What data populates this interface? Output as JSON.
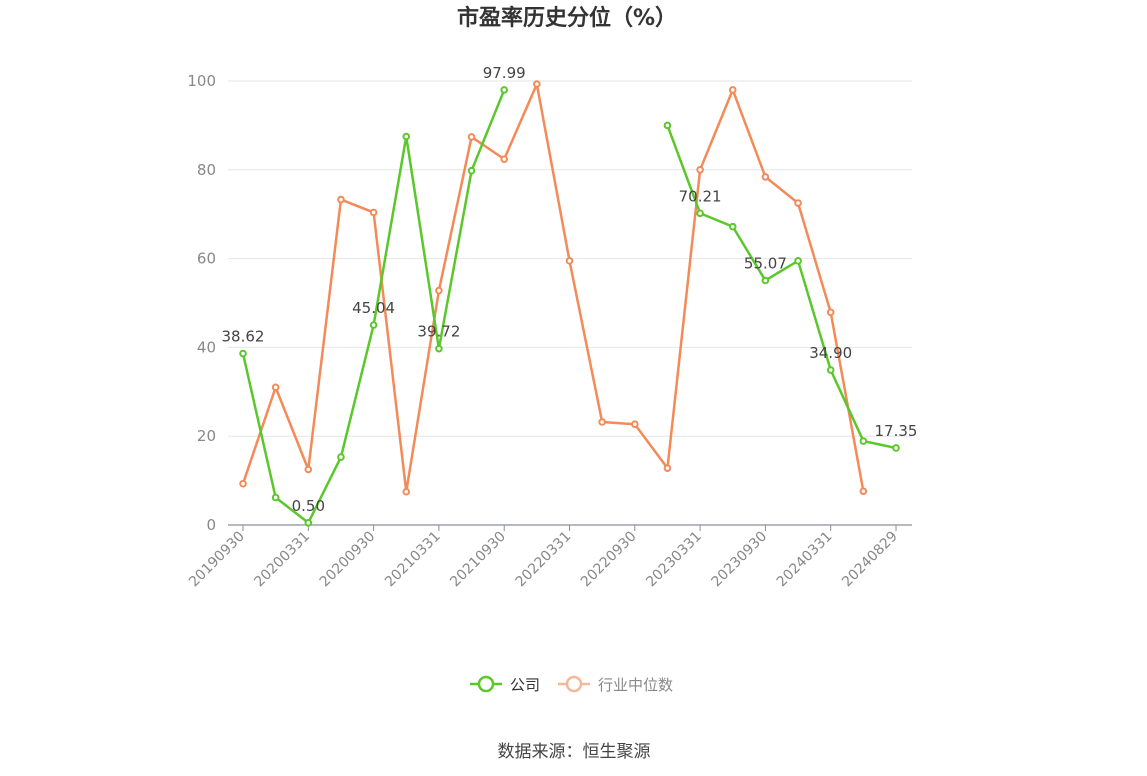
{
  "chart_data": {
    "type": "line",
    "title": "市盈率历史分位（%）",
    "xlabel": "",
    "ylabel": "",
    "ylim": [
      0,
      100
    ],
    "yticks": [
      0,
      20,
      40,
      60,
      80,
      100
    ],
    "x": [
      "20190930",
      "20191231",
      "20200331",
      "20200630",
      "20200930",
      "20201231",
      "20210331",
      "20210630",
      "20210930",
      "20211231",
      "20220331",
      "20220630",
      "20220930",
      "20221231",
      "20230331",
      "20230630",
      "20230930",
      "20231231",
      "20240331",
      "20240630",
      "20240829"
    ],
    "xtick_labels": [
      "20190930",
      "20200331",
      "20200930",
      "20210331",
      "20210930",
      "20220331",
      "20220930",
      "20230331",
      "20230930",
      "20240331",
      "20240829"
    ],
    "grid": true,
    "legend_position": "bottom",
    "series": [
      {
        "name": "公司",
        "color": "#5ac72a",
        "values": [
          38.62,
          6.2,
          0.5,
          15.3,
          45.04,
          87.5,
          39.72,
          79.8,
          97.99,
          null,
          null,
          null,
          null,
          90.0,
          70.21,
          67.2,
          55.07,
          59.5,
          34.9,
          18.9,
          17.35
        ],
        "labels": [
          "38.62",
          null,
          "0.50",
          null,
          "45.04",
          null,
          "39.72",
          null,
          "97.99",
          null,
          null,
          null,
          null,
          null,
          "70.21",
          null,
          "55.07",
          null,
          "34.90",
          null,
          "17.35"
        ]
      },
      {
        "name": "行业中位数",
        "color": "#f38a58",
        "values": [
          9.3,
          31.0,
          12.5,
          73.3,
          70.4,
          7.5,
          52.8,
          87.4,
          82.4,
          99.3,
          59.5,
          23.2,
          22.7,
          12.8,
          80.0,
          98.0,
          78.4,
          72.5,
          47.9,
          7.6,
          null
        ]
      }
    ]
  },
  "source": "数据来源：恒生聚源"
}
